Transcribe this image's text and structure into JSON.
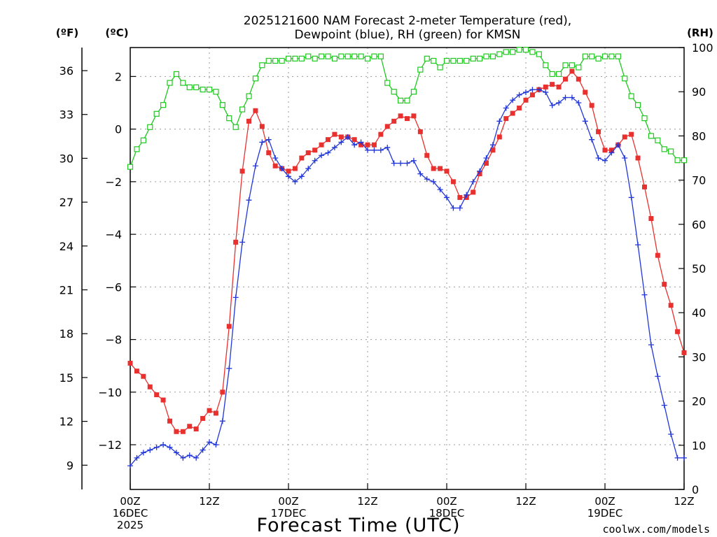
{
  "chart_data": {
    "type": "line",
    "title": [
      "2025121600 NAM Forecast 2-meter Temperature (red),",
      "Dewpoint (blue), RH (green) for KMSN"
    ],
    "xlabel": "Forecast Time (UTC)",
    "credit": "coolwx.com/models",
    "unit_labels": {
      "fahrenheit": "(ºF)",
      "celsius": "(ºC)",
      "rh": "(RH)"
    },
    "x_unit": "forecast hour from 2025121600 UTC",
    "xlim": [
      0,
      84
    ],
    "x_ticks": [
      {
        "x": 0,
        "lines": [
          "00Z",
          "16DEC",
          "2025"
        ]
      },
      {
        "x": 12,
        "lines": [
          "12Z"
        ]
      },
      {
        "x": 24,
        "lines": [
          "00Z",
          "17DEC"
        ]
      },
      {
        "x": 36,
        "lines": [
          "12Z"
        ]
      },
      {
        "x": 48,
        "lines": [
          "00Z",
          "18DEC"
        ]
      },
      {
        "x": 60,
        "lines": [
          "12Z"
        ]
      },
      {
        "x": 72,
        "lines": [
          "00Z",
          "19DEC"
        ]
      },
      {
        "x": 84,
        "lines": [
          "12Z"
        ]
      }
    ],
    "celsius_axis": {
      "lim": [
        -13.7,
        3.1
      ],
      "ticks": [
        2,
        0,
        -2,
        -4,
        -6,
        -8,
        -10,
        -12
      ],
      "labels": [
        "2",
        "0",
        "−2",
        "−4",
        "−6",
        "−8",
        "−10",
        "−12"
      ]
    },
    "fahrenheit_axis": {
      "ticks": [
        36,
        33,
        30,
        27,
        24,
        21,
        18,
        15,
        12,
        9
      ],
      "labels": [
        "36",
        "33",
        "30",
        "27",
        "24",
        "21",
        "18",
        "15",
        "12",
        "9"
      ]
    },
    "rh_axis": {
      "lim": [
        0,
        100
      ],
      "ticks": [
        100,
        90,
        80,
        70,
        60,
        50,
        40,
        30,
        20,
        10,
        0
      ],
      "labels": [
        "100",
        "90",
        "80",
        "70",
        "60",
        "50",
        "40",
        "30",
        "20",
        "10",
        "0"
      ]
    },
    "grid": true,
    "colors": {
      "temperature": "#e8312f",
      "dewpoint": "#2136d8",
      "rh": "#1ec81e",
      "credit": "#d42020"
    },
    "series": [
      {
        "key": "temperature",
        "axis": "celsius",
        "marker": "filled-square",
        "x": [
          0,
          1,
          2,
          3,
          4,
          5,
          6,
          7,
          8,
          9,
          10,
          11,
          12,
          13,
          14,
          15,
          16,
          17,
          18,
          19,
          20,
          21,
          22,
          23,
          24,
          25,
          26,
          27,
          28,
          29,
          30,
          31,
          32,
          33,
          34,
          35,
          36,
          37,
          38,
          39,
          40,
          41,
          42,
          43,
          44,
          45,
          46,
          47,
          48,
          49,
          50,
          51,
          52,
          53,
          54,
          55,
          56,
          57,
          58,
          59,
          60,
          61,
          62,
          63,
          64,
          65,
          66,
          67,
          68,
          69,
          70,
          71,
          72,
          73,
          74,
          75,
          76,
          77,
          78,
          79,
          80,
          81,
          82,
          83,
          84
        ],
        "values": [
          -8.9,
          -9.2,
          -9.4,
          -9.8,
          -10.1,
          -10.3,
          -11.1,
          -11.5,
          -11.5,
          -11.3,
          -11.4,
          -11.0,
          -10.7,
          -10.8,
          -10.0,
          -7.5,
          -4.3,
          -1.6,
          0.3,
          0.7,
          0.1,
          -0.9,
          -1.4,
          -1.5,
          -1.6,
          -1.5,
          -1.1,
          -0.9,
          -0.8,
          -0.6,
          -0.4,
          -0.2,
          -0.3,
          -0.3,
          -0.4,
          -0.6,
          -0.6,
          -0.6,
          -0.2,
          0.1,
          0.3,
          0.5,
          0.4,
          0.5,
          -0.1,
          -1.0,
          -1.5,
          -1.5,
          -1.6,
          -2.0,
          -2.6,
          -2.6,
          -2.4,
          -1.7,
          -1.3,
          -0.8,
          -0.3,
          0.4,
          0.6,
          0.8,
          1.1,
          1.3,
          1.5,
          1.6,
          1.7,
          1.6,
          1.9,
          2.2,
          1.9,
          1.4,
          0.9,
          -0.1,
          -0.8,
          -0.8,
          -0.6,
          -0.3,
          -0.2,
          -1.1,
          -2.2,
          -3.4,
          -4.8,
          -5.9,
          -6.7,
          -7.7,
          -8.5
        ]
      },
      {
        "key": "dewpoint",
        "axis": "celsius",
        "marker": "plus",
        "x": [
          0,
          1,
          2,
          3,
          4,
          5,
          6,
          7,
          8,
          9,
          10,
          11,
          12,
          13,
          14,
          15,
          16,
          17,
          18,
          19,
          20,
          21,
          22,
          23,
          24,
          25,
          26,
          27,
          28,
          29,
          30,
          31,
          32,
          33,
          34,
          35,
          36,
          37,
          38,
          39,
          40,
          41,
          42,
          43,
          44,
          45,
          46,
          47,
          48,
          49,
          50,
          51,
          52,
          53,
          54,
          55,
          56,
          57,
          58,
          59,
          60,
          61,
          62,
          63,
          64,
          65,
          66,
          67,
          68,
          69,
          70,
          71,
          72,
          73,
          74,
          75,
          76,
          77,
          78,
          79,
          80,
          81,
          82,
          83,
          84
        ],
        "values": [
          -12.8,
          -12.5,
          -12.3,
          -12.2,
          -12.1,
          -12.0,
          -12.1,
          -12.3,
          -12.5,
          -12.4,
          -12.5,
          -12.2,
          -11.9,
          -12.0,
          -11.1,
          -9.1,
          -6.4,
          -4.3,
          -2.7,
          -1.4,
          -0.5,
          -0.4,
          -1.1,
          -1.5,
          -1.8,
          -2.0,
          -1.8,
          -1.5,
          -1.2,
          -1.0,
          -0.9,
          -0.7,
          -0.5,
          -0.3,
          -0.6,
          -0.5,
          -0.8,
          -0.8,
          -0.8,
          -0.7,
          -1.3,
          -1.3,
          -1.3,
          -1.2,
          -1.7,
          -1.9,
          -2.0,
          -2.3,
          -2.6,
          -3.0,
          -3.0,
          -2.5,
          -2.0,
          -1.6,
          -1.1,
          -0.6,
          0.3,
          0.8,
          1.1,
          1.3,
          1.4,
          1.5,
          1.5,
          1.4,
          0.9,
          1.0,
          1.2,
          1.2,
          1.0,
          0.3,
          -0.4,
          -1.1,
          -1.2,
          -0.9,
          -0.6,
          -1.1,
          -2.6,
          -4.4,
          -6.3,
          -8.2,
          -9.4,
          -10.5,
          -11.6,
          -12.5,
          -12.5
        ]
      },
      {
        "key": "rh",
        "axis": "rh",
        "marker": "open-square",
        "x": [
          0,
          1,
          2,
          3,
          4,
          5,
          6,
          7,
          8,
          9,
          10,
          11,
          12,
          13,
          14,
          15,
          16,
          17,
          18,
          19,
          20,
          21,
          22,
          23,
          24,
          25,
          26,
          27,
          28,
          29,
          30,
          31,
          32,
          33,
          34,
          35,
          36,
          37,
          38,
          39,
          40,
          41,
          42,
          43,
          44,
          45,
          46,
          47,
          48,
          49,
          50,
          51,
          52,
          53,
          54,
          55,
          56,
          57,
          58,
          59,
          60,
          61,
          62,
          63,
          64,
          65,
          66,
          67,
          68,
          69,
          70,
          71,
          72,
          73,
          74,
          75,
          76,
          77,
          78,
          79,
          80,
          81,
          82,
          83,
          84
        ],
        "values": [
          73,
          77,
          79,
          82,
          85,
          87,
          92,
          94,
          92,
          91,
          91,
          90.5,
          90.5,
          90,
          87,
          84,
          82,
          86,
          89,
          93,
          96,
          97,
          97,
          97,
          97.5,
          97.5,
          97.5,
          98,
          97.5,
          98,
          98,
          97.5,
          98,
          98,
          98,
          98,
          97.5,
          98,
          98,
          92,
          90,
          88,
          88,
          90,
          95,
          97.5,
          97,
          95.5,
          97,
          97,
          97,
          97,
          97.5,
          97.5,
          98,
          98,
          98.5,
          99,
          99,
          99.5,
          99.5,
          99,
          98.5,
          96,
          94,
          94,
          96,
          96,
          95.5,
          98,
          98,
          97.5,
          98,
          98,
          98,
          93,
          89,
          87,
          84,
          80,
          79,
          77,
          76.5,
          74.5,
          74.5
        ]
      }
    ]
  }
}
